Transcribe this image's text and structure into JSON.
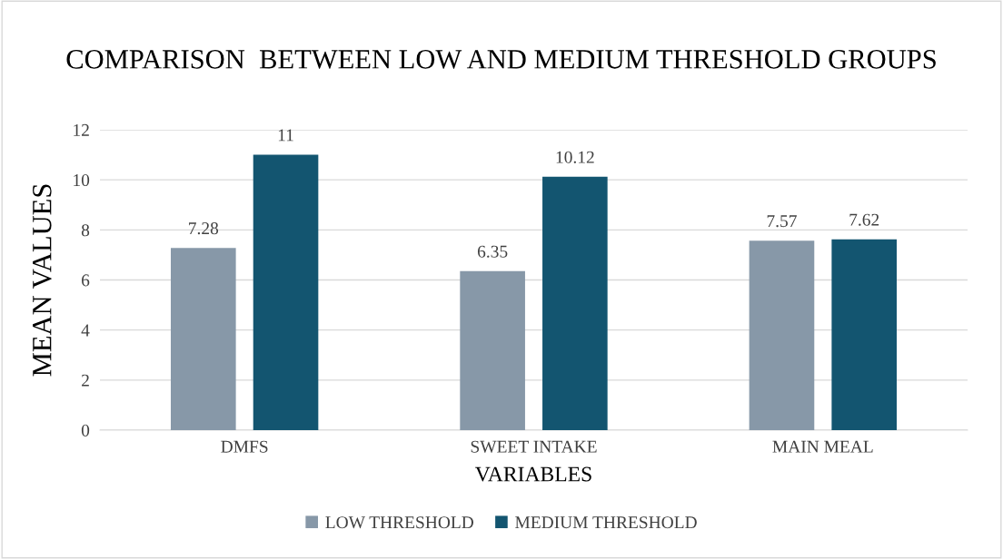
{
  "chart_data": {
    "type": "bar",
    "title": "COMPARISON  BETWEEN LOW AND MEDIUM THRESHOLD GROUPS",
    "xlabel": "VARIABLES",
    "ylabel": "MEAN VALUES",
    "categories": [
      "DMFS",
      "SWEET INTAKE",
      "MAIN MEAL"
    ],
    "series": [
      {
        "name": "LOW THRESHOLD",
        "color": "#8798a8",
        "values": [
          7.28,
          6.35,
          7.57
        ]
      },
      {
        "name": "MEDIUM THRESHOLD",
        "color": "#135570",
        "values": [
          11,
          10.12,
          7.62
        ]
      }
    ],
    "ylim": [
      0,
      12
    ],
    "yticks": [
      0,
      2,
      4,
      6,
      8,
      10,
      12
    ],
    "grid": "y",
    "legend": "bottom",
    "data_labels": true
  }
}
